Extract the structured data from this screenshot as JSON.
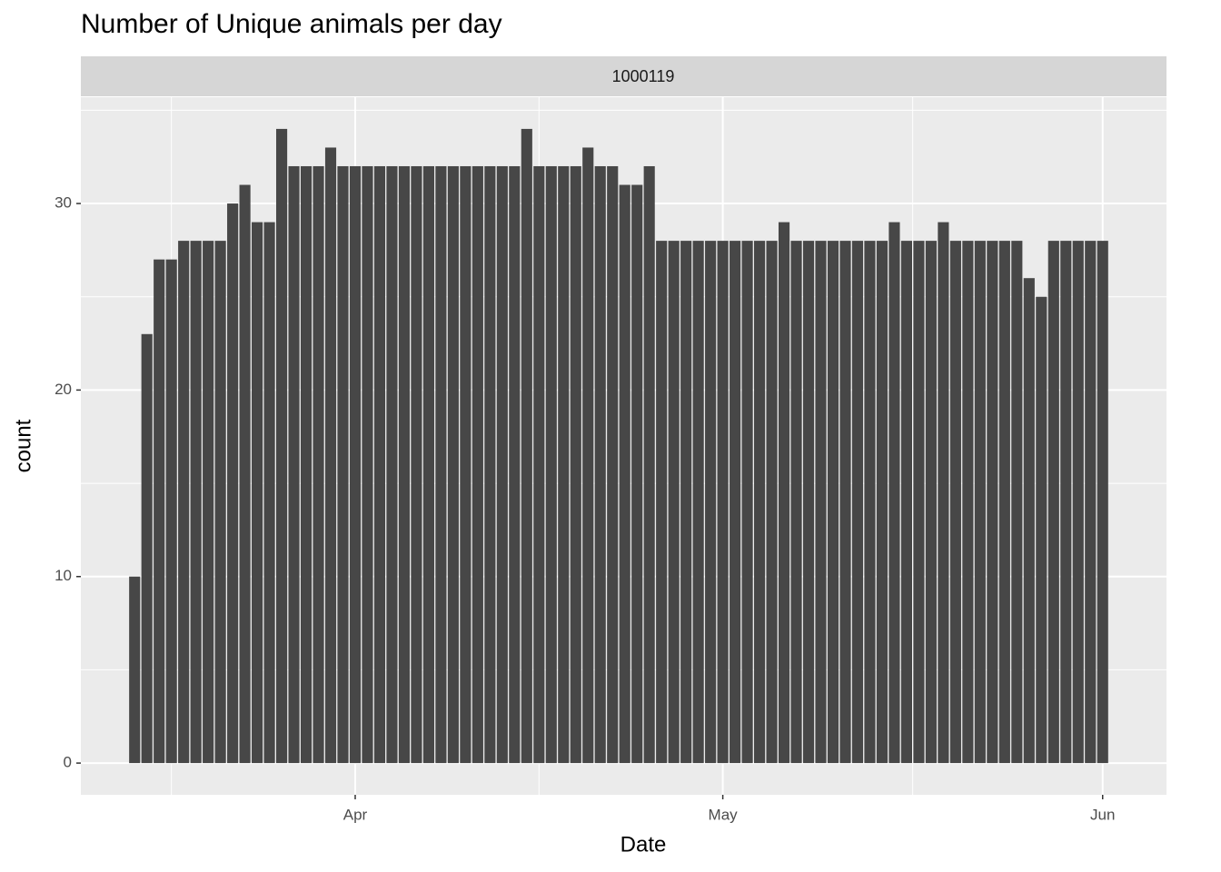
{
  "chart_data": {
    "type": "bar",
    "title": "Number of Unique animals per day",
    "facet_label": "1000119",
    "x_label": "Date",
    "y_label": "count",
    "categories": [
      null,
      null,
      null,
      null,
      null,
      null,
      null,
      null,
      null,
      null,
      null,
      null,
      null,
      null,
      null,
      null,
      null,
      null,
      "Apr",
      null,
      null,
      null,
      null,
      null,
      null,
      null,
      null,
      null,
      null,
      null,
      null,
      null,
      null,
      null,
      null,
      null,
      null,
      null,
      null,
      null,
      null,
      null,
      null,
      null,
      null,
      null,
      null,
      null,
      "May",
      null,
      null,
      null,
      null,
      null,
      null,
      null,
      null,
      null,
      null,
      null,
      null,
      null,
      null,
      null,
      null,
      null,
      null,
      null,
      null,
      null,
      null,
      null,
      null,
      null,
      null,
      null,
      null,
      null,
      null,
      "Jun"
    ],
    "values": [
      10,
      23,
      27,
      27,
      28,
      28,
      28,
      28,
      30,
      31,
      29,
      29,
      34,
      32,
      32,
      32,
      33,
      32,
      32,
      32,
      32,
      32,
      32,
      32,
      32,
      32,
      32,
      32,
      32,
      32,
      32,
      32,
      34,
      32,
      32,
      32,
      32,
      33,
      32,
      32,
      31,
      31,
      32,
      28,
      28,
      28,
      28,
      28,
      28,
      28,
      28,
      28,
      28,
      29,
      28,
      28,
      28,
      28,
      28,
      28,
      28,
      28,
      29,
      28,
      28,
      28,
      29,
      28,
      28,
      28,
      28,
      28,
      28,
      26,
      25,
      28,
      28,
      28,
      28,
      28
    ],
    "color": "#474747",
    "ylim": [
      -1.7,
      35.7
    ],
    "yticks": [
      0,
      10,
      20,
      30
    ],
    "grid": true
  }
}
